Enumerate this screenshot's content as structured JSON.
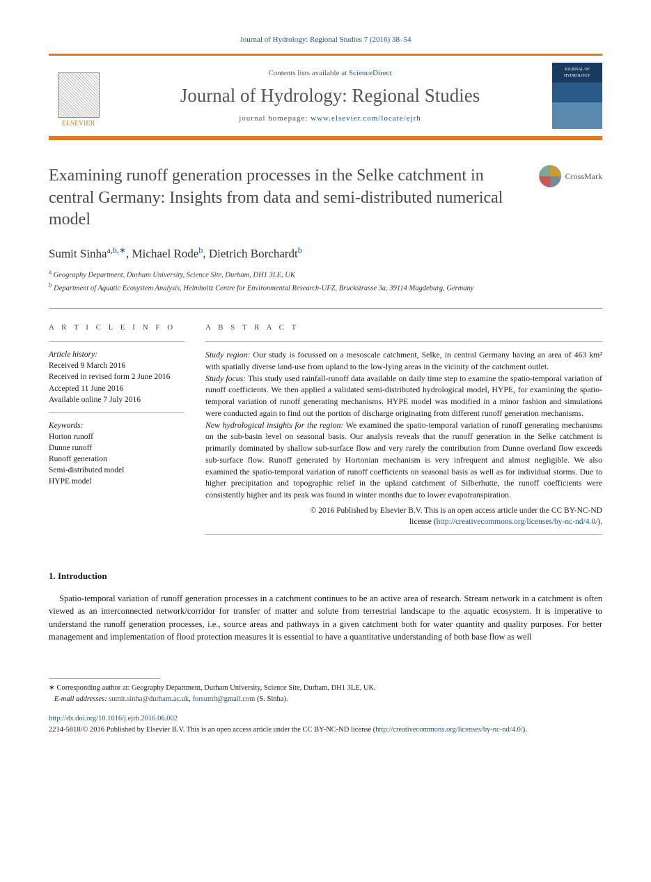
{
  "citation": "Journal of Hydrology: Regional Studies 7 (2016) 38–54",
  "header": {
    "contents_prefix": "Contents lists available at ",
    "contents_link": "ScienceDirect",
    "journal": "Journal of Hydrology: Regional Studies",
    "homepage_prefix": "journal homepage: ",
    "homepage_url": "www.elsevier.com/locate/ejrh",
    "publisher_name": "ELSEVIER",
    "cover_text": "JOURNAL OF HYDROLOGY"
  },
  "colors": {
    "accent": "#e67817",
    "link": "#1a5490",
    "text": "#1a1a1a",
    "muted": "#555555"
  },
  "title": "Examining runoff generation processes in the Selke catchment in central Germany: Insights from data and semi-distributed numerical model",
  "crossmark_label": "CrossMark",
  "authors_html": {
    "a1_name": "Sumit Sinha",
    "a1_aff": "a,b,",
    "a1_corr": "∗",
    "sep1": ", ",
    "a2_name": "Michael Rode",
    "a2_aff": "b",
    "sep2": ", ",
    "a3_name": "Dietrich Borchardt",
    "a3_aff": "b"
  },
  "affiliations": {
    "a": "Geography Department, Durham University, Science Site, Durham, DH1 3LE, UK",
    "b": "Department of Aquatic Ecosystem Analysis, Helmholtz Centre for Environmental Research-UFZ, Bruckstrasse 3a, 39114 Magdeburg, Germany"
  },
  "article_info": {
    "heading": "A R T I C L E   I N F O",
    "history_label": "Article history:",
    "history": [
      "Received 9 March 2016",
      "Received in revised form 2 June 2016",
      "Accepted 11 June 2016",
      "Available online 7 July 2016"
    ],
    "keywords_label": "Keywords:",
    "keywords": [
      "Horton runoff",
      "Dunne runoff",
      "Runoff generation",
      "Semi-distributed model",
      "HYPE model"
    ]
  },
  "abstract": {
    "heading": "A B S T R A C T",
    "p1_lead": "Study region:",
    "p1": " Our study is focussed on a mesoscale catchment, Selke, in central Germany having an area of 463 km² with spatially diverse land-use from upland to the low-lying areas in the vicinity of the catchment outlet.",
    "p2_lead": "Study focus:",
    "p2": " This study used rainfall-runoff data available on daily time step to examine the spatio-temporal variation of runoff coefficients. We then applied a validated semi-distributed hydrological model, HYPE, for examining the spatio-temporal variation of runoff generating mechanisms. HYPE model was modified in a minor fashion and simulations were conducted again to find out the portion of discharge originating from different runoff generation mechanisms.",
    "p3_lead": "New hydrological insights for the region:",
    "p3": " We examined the spatio-temporal variation of runoff generating mechanisms on the sub-basin level on seasonal basis. Our analysis reveals that the runoff generation in the Selke catchment is primarily dominated by shallow sub-surface flow and very rarely the contribution from Dunne overland flow exceeds sub-surface flow. Runoff generated by Hortonian mechanism is very infrequent and almost negligible. We also examined the spatio-temporal variation of runoff coefficients on seasonal basis as well as for individual storms. Due to higher precipitation and topographic relief in the upland catchment of Silberhutte, the runoff coefficients were consistently higher and its peak was found in winter months due to lower evapotranspiration.",
    "copyright1": "© 2016 Published by Elsevier B.V. This is an open access article under the CC BY-NC-ND",
    "copyright2_prefix": "license (",
    "copyright2_link": "http://creativecommons.org/licenses/by-nc-nd/4.0/",
    "copyright2_suffix": ")."
  },
  "intro": {
    "heading": "1.  Introduction",
    "body": "Spatio-temporal variation of runoff generation processes in a catchment continues to be an active area of research. Stream network in a catchment is often viewed as an interconnected network/corridor for transfer of matter and solute from terrestrial landscape to the aquatic ecosystem. It is imperative to understand the runoff generation processes, i.e., source areas and pathways in a given catchment both for water quantity and quality purposes. For better management and implementation of flood protection measures it is essential to have a quantitative understanding of both base flow as well"
  },
  "footnotes": {
    "corr_marker": "∗",
    "corr_text": " Corresponding author at: Geography Department, Durham University, Science Site, Durham, DH1 3LE, UK.",
    "email_label": "E-mail addresses: ",
    "email1": "sumit.sinha@durham.ac.uk",
    "email_sep": ", ",
    "email2": "forsumit@gmail.com",
    "email_suffix": " (S. Sinha).",
    "doi": "http://dx.doi.org/10.1016/j.ejrh.2016.06.002",
    "license_prefix": "2214-5818/© 2016 Published by Elsevier B.V. This is an open access article under the CC BY-NC-ND license (",
    "license_link": "http://creativecommons.org/licenses/by-nc-nd/4.0/",
    "license_suffix": ")."
  }
}
